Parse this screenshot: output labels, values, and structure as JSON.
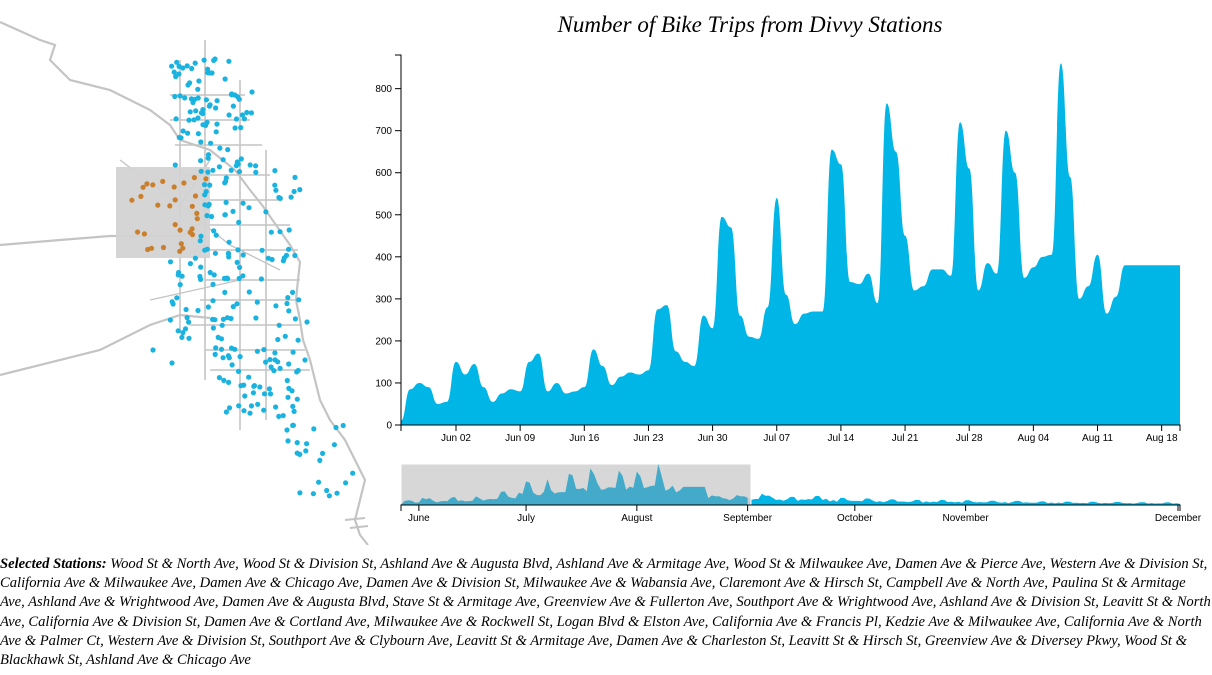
{
  "title": "Number of Bike Trips from Divvy Stations",
  "colors": {
    "area": "#00b6e6",
    "selected_dot": "#c97f2b",
    "dot": "#1ab3e0",
    "brush": "#d3d3d3",
    "street": "#c4c4c4"
  },
  "chart_data": [
    {
      "type": "area",
      "title": "Number of Bike Trips from Divvy Stations",
      "x_ticks": [
        "Jun 02",
        "Jun 09",
        "Jun 16",
        "Jun 23",
        "Jun 30",
        "Jul 07",
        "Jul 14",
        "Jul 21",
        "Jul 28",
        "Aug 04",
        "Aug 11",
        "Aug 18"
      ],
      "y_ticks": [
        "0",
        "100",
        "200",
        "300",
        "400",
        "500",
        "600",
        "700",
        "800"
      ],
      "x_range": [
        "2013-05-27",
        "2013-08-20"
      ],
      "ylim": [
        0,
        880
      ],
      "x": [
        "2013-05-27",
        "2013-05-28",
        "2013-05-29",
        "2013-05-30",
        "2013-05-31",
        "2013-06-01",
        "2013-06-02",
        "2013-06-03",
        "2013-06-04",
        "2013-06-05",
        "2013-06-06",
        "2013-06-07",
        "2013-06-08",
        "2013-06-09",
        "2013-06-10",
        "2013-06-11",
        "2013-06-12",
        "2013-06-13",
        "2013-06-14",
        "2013-06-15",
        "2013-06-16",
        "2013-06-17",
        "2013-06-18",
        "2013-06-19",
        "2013-06-20",
        "2013-06-21",
        "2013-06-22",
        "2013-06-23",
        "2013-06-24",
        "2013-06-25",
        "2013-06-26",
        "2013-06-27",
        "2013-06-28",
        "2013-06-29",
        "2013-06-30",
        "2013-07-01",
        "2013-07-02",
        "2013-07-03",
        "2013-07-04",
        "2013-07-05",
        "2013-07-06",
        "2013-07-07",
        "2013-07-08",
        "2013-07-09",
        "2013-07-10",
        "2013-07-11",
        "2013-07-12",
        "2013-07-13",
        "2013-07-14",
        "2013-07-15",
        "2013-07-16",
        "2013-07-17",
        "2013-07-18",
        "2013-07-19",
        "2013-07-20",
        "2013-07-21",
        "2013-07-22",
        "2013-07-23",
        "2013-07-24",
        "2013-07-25",
        "2013-07-26",
        "2013-07-27",
        "2013-07-28",
        "2013-07-29",
        "2013-07-30",
        "2013-07-31",
        "2013-08-01",
        "2013-08-02",
        "2013-08-03",
        "2013-08-04",
        "2013-08-05",
        "2013-08-06",
        "2013-08-07",
        "2013-08-08",
        "2013-08-09",
        "2013-08-10",
        "2013-08-11",
        "2013-08-12",
        "2013-08-13",
        "2013-08-14",
        "2013-08-15",
        "2013-08-16",
        "2013-08-17",
        "2013-08-18",
        "2013-08-19",
        "2013-08-20"
      ],
      "values": [
        10,
        85,
        100,
        90,
        50,
        55,
        150,
        120,
        145,
        90,
        55,
        75,
        85,
        80,
        150,
        170,
        80,
        100,
        75,
        80,
        90,
        180,
        140,
        95,
        115,
        125,
        120,
        130,
        275,
        285,
        175,
        150,
        140,
        260,
        230,
        495,
        470,
        260,
        210,
        205,
        280,
        540,
        310,
        240,
        265,
        270,
        270,
        655,
        620,
        340,
        335,
        360,
        290,
        765,
        650,
        450,
        320,
        330,
        370,
        370,
        355,
        720,
        610,
        320,
        385,
        360,
        700,
        600,
        350,
        375,
        400,
        405,
        860,
        590,
        300,
        330,
        405,
        265,
        305,
        380,
        380,
        380,
        380,
        380,
        380,
        380
      ],
      "ylabel": "",
      "xlabel": ""
    },
    {
      "type": "area",
      "title": "",
      "x_ticks": [
        "June",
        "July",
        "August",
        "September",
        "October",
        "November",
        "December"
      ],
      "x_range": [
        "2013-05-27",
        "2013-12-31"
      ],
      "ylim": [
        0,
        880
      ],
      "weekly_peaks": [
        20,
        60,
        90,
        110,
        150,
        190,
        230,
        250,
        300,
        320,
        340,
        330,
        370,
        370,
        400,
        380,
        420,
        330,
        300,
        260,
        240,
        230,
        220,
        200,
        190,
        170,
        160,
        150,
        140,
        130,
        120,
        110,
        100,
        90,
        70,
        60,
        50,
        40,
        30,
        20
      ],
      "ylabel": "",
      "xlabel": ""
    }
  ],
  "brush_range": [
    "2013-05-27",
    "2013-08-20"
  ],
  "selected": {
    "label": "Selected Stations:",
    "stations": "Wood St & North Ave, Wood St & Division St, Ashland Ave & Augusta Blvd, Ashland Ave & Armitage Ave, Wood St & Milwaukee Ave, Damen Ave & Pierce Ave, Western Ave & Division St, California Ave & Milwaukee Ave, Damen Ave & Chicago Ave, Damen Ave & Division St, Milwaukee Ave & Wabansia Ave, Claremont Ave & Hirsch St, Campbell Ave & North Ave, Paulina St & Armitage Ave, Ashland Ave & Wrightwood Ave, Damen Ave & Augusta Blvd, Stave St & Armitage Ave, Greenview Ave & Fullerton Ave, Southport Ave & Wrightwood Ave, Ashland Ave & Division St, Leavitt St & North Ave, California Ave & Division St, Damen Ave & Cortland Ave, Milwaukee Ave & Rockwell St, Logan Blvd & Elston Ave, California Ave & Francis Pl, Kedzie Ave & Milwaukee Ave, California Ave & North Ave & Palmer Ct, Western Ave & Division St, Southport Ave & Clybourn Ave, Leavitt St & Armitage Ave, Damen Ave & Charleston St, Leavitt St & Hirsch St, Greenview Ave & Diversey Pkwy, Wood St & Blackhawk St, Ashland Ave & Chicago Ave"
  },
  "map": {
    "dot_count_total": 300,
    "selected_dot_count": 30
  }
}
